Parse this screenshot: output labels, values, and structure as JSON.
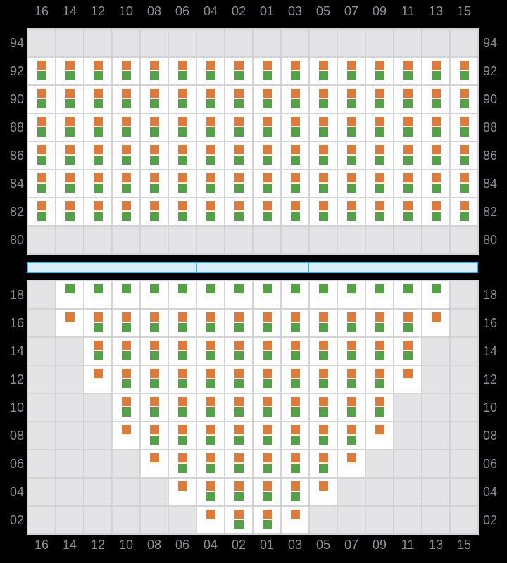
{
  "colors": {
    "background": "#000000",
    "orange_marker": "#dd7b3b",
    "green_marker": "#53a246",
    "slot_white": "#ffffff",
    "slot_excluded_grey": "#e4e4e7",
    "grid_line": "#d4d4d8",
    "label_grey": "#8e8e95",
    "hatch_border_blue": "#3cb0e8",
    "hatch_fill_blue": "#ddeefb"
  },
  "legend": {
    "cell_codes": {
      "x": "excluded-grey-slot",
      "og": "orange-square-over-green-square",
      "o": "orange-square-only",
      "g": "green-square-only"
    }
  },
  "axis": {
    "columns": [
      "16",
      "14",
      "12",
      "10",
      "08",
      "06",
      "04",
      "02",
      "01",
      "03",
      "05",
      "07",
      "09",
      "11",
      "13",
      "15"
    ]
  },
  "deck_section": {
    "tiers": [
      {
        "label": "94",
        "cells": [
          "x",
          "x",
          "x",
          "x",
          "x",
          "x",
          "x",
          "x",
          "x",
          "x",
          "x",
          "x",
          "x",
          "x",
          "x",
          "x"
        ]
      },
      {
        "label": "92",
        "cells": [
          "og",
          "og",
          "og",
          "og",
          "og",
          "og",
          "og",
          "og",
          "og",
          "og",
          "og",
          "og",
          "og",
          "og",
          "og",
          "og"
        ]
      },
      {
        "label": "90",
        "cells": [
          "og",
          "og",
          "og",
          "og",
          "og",
          "og",
          "og",
          "og",
          "og",
          "og",
          "og",
          "og",
          "og",
          "og",
          "og",
          "og"
        ]
      },
      {
        "label": "88",
        "cells": [
          "og",
          "og",
          "og",
          "og",
          "og",
          "og",
          "og",
          "og",
          "og",
          "og",
          "og",
          "og",
          "og",
          "og",
          "og",
          "og"
        ]
      },
      {
        "label": "86",
        "cells": [
          "og",
          "og",
          "og",
          "og",
          "og",
          "og",
          "og",
          "og",
          "og",
          "og",
          "og",
          "og",
          "og",
          "og",
          "og",
          "og"
        ]
      },
      {
        "label": "84",
        "cells": [
          "og",
          "og",
          "og",
          "og",
          "og",
          "og",
          "og",
          "og",
          "og",
          "og",
          "og",
          "og",
          "og",
          "og",
          "og",
          "og"
        ]
      },
      {
        "label": "82",
        "cells": [
          "og",
          "og",
          "og",
          "og",
          "og",
          "og",
          "og",
          "og",
          "og",
          "og",
          "og",
          "og",
          "og",
          "og",
          "og",
          "og"
        ]
      },
      {
        "label": "80",
        "cells": [
          "x",
          "x",
          "x",
          "x",
          "x",
          "x",
          "x",
          "x",
          "x",
          "x",
          "x",
          "x",
          "x",
          "x",
          "x",
          "x"
        ]
      }
    ]
  },
  "hatch_covers": {
    "segments": [
      {
        "span_columns": 6
      },
      {
        "span_columns": 4
      },
      {
        "span_columns": 6
      }
    ]
  },
  "hold_section": {
    "tiers": [
      {
        "label": "18",
        "cells": [
          "x",
          "g",
          "g",
          "g",
          "g",
          "g",
          "g",
          "g",
          "g",
          "g",
          "g",
          "g",
          "g",
          "g",
          "g",
          "x"
        ]
      },
      {
        "label": "16",
        "cells": [
          "x",
          "o",
          "og",
          "og",
          "og",
          "og",
          "og",
          "og",
          "og",
          "og",
          "og",
          "og",
          "og",
          "og",
          "o",
          "x"
        ]
      },
      {
        "label": "14",
        "cells": [
          "x",
          "x",
          "og",
          "og",
          "og",
          "og",
          "og",
          "og",
          "og",
          "og",
          "og",
          "og",
          "og",
          "og",
          "x",
          "x"
        ]
      },
      {
        "label": "12",
        "cells": [
          "x",
          "x",
          "o",
          "og",
          "og",
          "og",
          "og",
          "og",
          "og",
          "og",
          "og",
          "og",
          "og",
          "o",
          "x",
          "x"
        ]
      },
      {
        "label": "10",
        "cells": [
          "x",
          "x",
          "x",
          "og",
          "og",
          "og",
          "og",
          "og",
          "og",
          "og",
          "og",
          "og",
          "og",
          "x",
          "x",
          "x"
        ]
      },
      {
        "label": "08",
        "cells": [
          "x",
          "x",
          "x",
          "o",
          "og",
          "og",
          "og",
          "og",
          "og",
          "og",
          "og",
          "og",
          "o",
          "x",
          "x",
          "x"
        ]
      },
      {
        "label": "06",
        "cells": [
          "x",
          "x",
          "x",
          "x",
          "o",
          "og",
          "og",
          "og",
          "og",
          "og",
          "og",
          "o",
          "x",
          "x",
          "x",
          "x"
        ]
      },
      {
        "label": "04",
        "cells": [
          "x",
          "x",
          "x",
          "x",
          "x",
          "o",
          "og",
          "og",
          "og",
          "og",
          "o",
          "x",
          "x",
          "x",
          "x",
          "x"
        ]
      },
      {
        "label": "02",
        "cells": [
          "x",
          "x",
          "x",
          "x",
          "x",
          "x",
          "o",
          "og",
          "og",
          "o",
          "x",
          "x",
          "x",
          "x",
          "x",
          "x"
        ]
      }
    ]
  }
}
